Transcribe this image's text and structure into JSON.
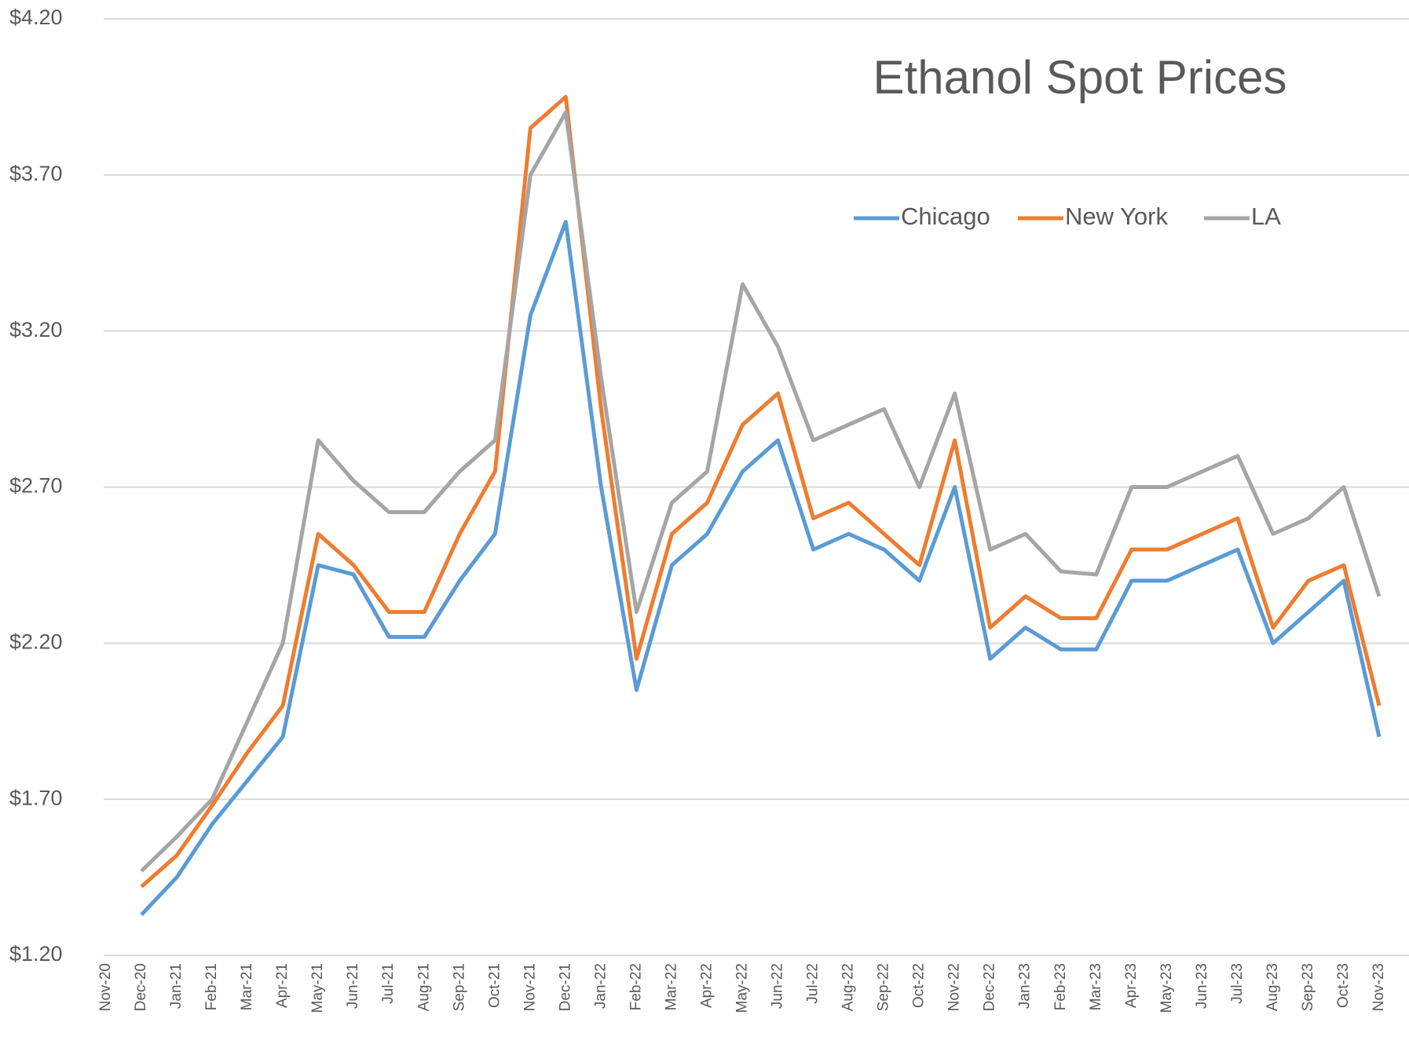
{
  "chart_data": {
    "type": "line",
    "title": "Ethanol Spot Prices",
    "categories": [
      "Nov-20",
      "Dec-20",
      "Jan-21",
      "Feb-21",
      "Mar-21",
      "Apr-21",
      "May-21",
      "Jun-21",
      "Jul-21",
      "Aug-21",
      "Sep-21",
      "Oct-21",
      "Nov-21",
      "Dec-21",
      "Jan-22",
      "Feb-22",
      "Mar-22",
      "Apr-22",
      "May-22",
      "Jun-22",
      "Jul-22",
      "Aug-22",
      "Sep-22",
      "Oct-22",
      "Nov-22",
      "Dec-22",
      "Jan-23",
      "Feb-23",
      "Mar-23",
      "Apr-23",
      "May-23",
      "Jun-23",
      "Jul-23",
      "Aug-23",
      "Sep-23",
      "Oct-23",
      "Nov-23"
    ],
    "series": [
      {
        "name": "Chicago",
        "color": "#5b9bd5",
        "values": [
          null,
          1.33,
          1.45,
          1.62,
          1.76,
          1.9,
          2.45,
          2.42,
          2.22,
          2.22,
          2.4,
          2.55,
          3.25,
          3.55,
          2.7,
          2.05,
          2.45,
          2.55,
          2.75,
          2.85,
          2.5,
          2.55,
          2.5,
          2.4,
          2.7,
          2.15,
          2.25,
          2.18,
          2.18,
          2.4,
          2.4,
          2.45,
          2.5,
          2.2,
          2.3,
          2.4,
          1.9
        ]
      },
      {
        "name": "New York",
        "color": "#ed7d31",
        "values": [
          null,
          1.42,
          1.52,
          1.68,
          1.85,
          2.0,
          2.55,
          2.45,
          2.3,
          2.3,
          2.55,
          2.75,
          3.85,
          3.95,
          2.95,
          2.15,
          2.55,
          2.65,
          2.9,
          3.0,
          2.6,
          2.65,
          2.55,
          2.45,
          2.85,
          2.25,
          2.35,
          2.28,
          2.28,
          2.5,
          2.5,
          2.55,
          2.6,
          2.25,
          2.4,
          2.45,
          2.0
        ]
      },
      {
        "name": "LA",
        "color": "#a5a5a5",
        "values": [
          null,
          1.47,
          1.58,
          1.7,
          1.95,
          2.2,
          2.85,
          2.72,
          2.62,
          2.62,
          2.75,
          2.85,
          3.7,
          3.9,
          3.05,
          2.3,
          2.65,
          2.75,
          3.35,
          3.15,
          2.85,
          2.9,
          2.95,
          2.7,
          3.0,
          2.5,
          2.55,
          2.43,
          2.42,
          2.7,
          2.7,
          2.75,
          2.8,
          2.55,
          2.6,
          2.7,
          2.35
        ]
      }
    ],
    "ylim": [
      1.2,
      4.2
    ],
    "yticks": [
      {
        "value": 1.2,
        "label": "$1.20"
      },
      {
        "value": 1.7,
        "label": "$1.70"
      },
      {
        "value": 2.2,
        "label": "$2.20"
      },
      {
        "value": 2.7,
        "label": "$2.70"
      },
      {
        "value": 3.2,
        "label": "$3.20"
      },
      {
        "value": 3.7,
        "label": "$3.70"
      },
      {
        "value": 4.2,
        "label": "$4.20"
      }
    ],
    "grid": true
  }
}
